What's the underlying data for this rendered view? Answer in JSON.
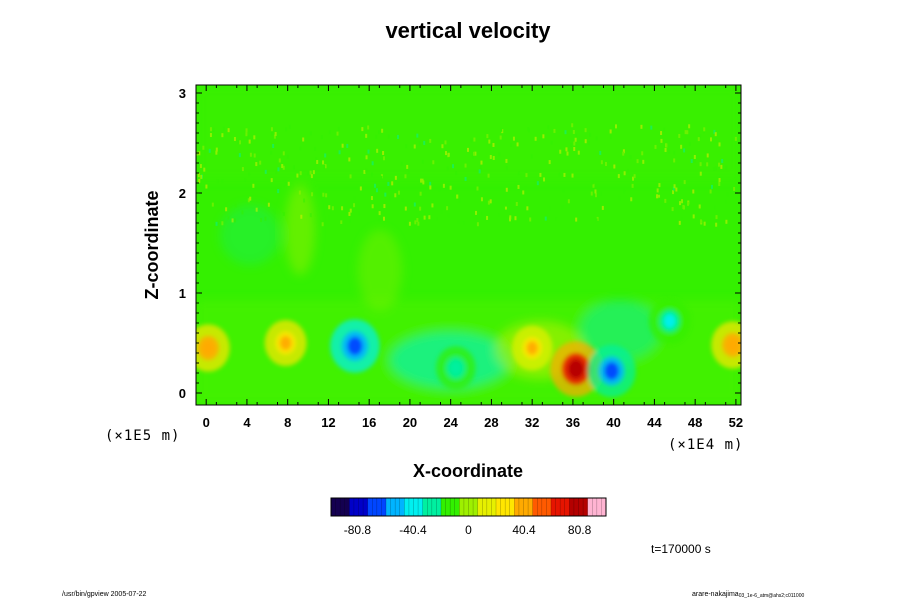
{
  "chart_data": {
    "type": "heatmap",
    "title": "vertical velocity",
    "xlabel": "X-coordinate",
    "ylabel": "Z-coordinate",
    "x_ticks": [
      "0",
      "4",
      "8",
      "12",
      "16",
      "20",
      "24",
      "28",
      "32",
      "36",
      "40",
      "44",
      "48",
      "52"
    ],
    "x_tick_values": [
      0,
      4,
      8,
      12,
      16,
      20,
      24,
      28,
      32,
      36,
      40,
      44,
      48,
      52
    ],
    "y_ticks": [
      "0",
      "1",
      "2",
      "3"
    ],
    "y_tick_values": [
      0,
      1,
      2,
      3
    ],
    "xlim": [
      -1,
      52.5
    ],
    "ylim": [
      -0.12,
      3.08
    ],
    "x_unit_label": "(×1E4 m)",
    "y_unit_label": "(×1E5 m)",
    "colorbar": {
      "ticks": [
        "-80.8",
        "-40.4",
        "0",
        "40.4",
        "80.8"
      ],
      "tick_values": [
        -80.8,
        -40.4,
        0,
        40.4,
        80.8
      ],
      "range": [
        -100,
        100
      ],
      "colors": [
        "#140050",
        "#0000c8",
        "#0046ff",
        "#00b4ff",
        "#00f0f0",
        "#00f0a0",
        "#32f000",
        "#9ef000",
        "#e6f000",
        "#ffe600",
        "#ffaa00",
        "#ff5a00",
        "#e61400",
        "#b40000",
        "#ffb4d2"
      ]
    },
    "features": [
      {
        "x": 0.2,
        "z": 0.45,
        "value": 45
      },
      {
        "x": 7.8,
        "z": 0.5,
        "value": 40
      },
      {
        "x": 14.6,
        "z": 0.47,
        "value": -70
      },
      {
        "x": 24.5,
        "z": 0.25,
        "value": -30
      },
      {
        "x": 36.3,
        "z": 0.24,
        "value": 78
      },
      {
        "x": 39.8,
        "z": 0.22,
        "value": -65
      },
      {
        "x": 45.5,
        "z": 0.72,
        "value": -40
      },
      {
        "x": 32,
        "z": 0.45,
        "value": 35
      },
      {
        "x": 51.7,
        "z": 0.48,
        "value": 45
      }
    ],
    "grid": false
  },
  "time_label": "t=170000 s",
  "footer_left": "/usr/bin/gpview 2005-07-22",
  "footer_right": "arare-nakajima",
  "footer_right_sub": "03_1e-6_atm@ahs2;c011000"
}
